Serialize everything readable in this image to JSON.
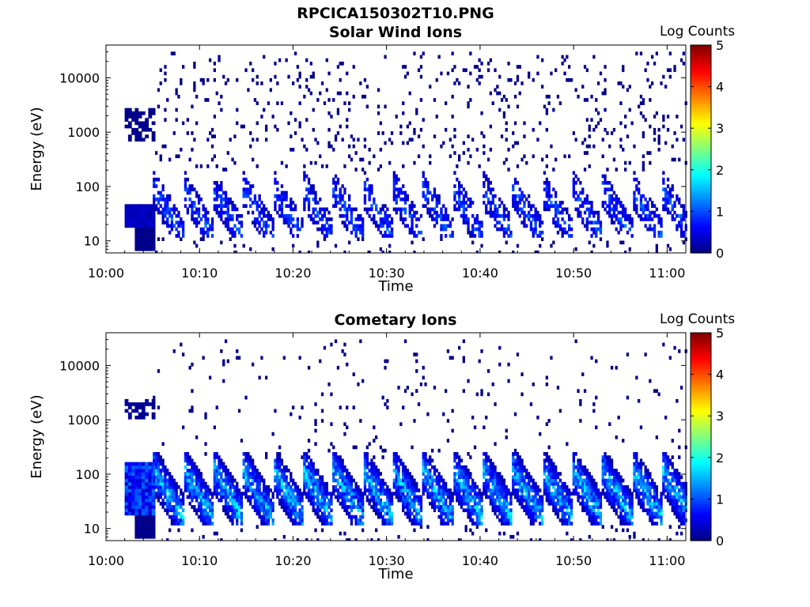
{
  "figure_title": "RPCICA150302T10.PNG",
  "panels": [
    {
      "title": "Solar Wind Ions",
      "xlabel": "Time",
      "ylabel": "Energy (eV)",
      "colorbar_label": "Log Counts"
    },
    {
      "title": "Cometary Ions",
      "xlabel": "Time",
      "ylabel": "Energy (eV)",
      "colorbar_label": "Log Counts"
    }
  ],
  "chart_data": [
    {
      "type": "heatmap",
      "title": "Solar Wind Ions",
      "xlabel": "Time",
      "ylabel": "Energy (eV)",
      "y_scale": "log",
      "ylim": [
        6,
        40000
      ],
      "xlim": [
        "10:00",
        "11:02"
      ],
      "x_ticks": [
        "10:00",
        "10:10",
        "10:20",
        "10:30",
        "10:40",
        "10:50",
        "11:00"
      ],
      "y_ticks": [
        "10",
        "100",
        "1000",
        "10000"
      ],
      "colorbar": {
        "label": "Log Counts",
        "range": [
          0,
          5
        ],
        "ticks": [
          "0",
          "1",
          "2",
          "3",
          "4",
          "5"
        ],
        "colormap": "jet"
      },
      "cycle_minutes": 3.2,
      "description_of_structure": "repeating energy sweeps every ~3.2 min; main population 20-300 eV with counts mostly 0-1 log",
      "peak_level": 1.3
    },
    {
      "type": "heatmap",
      "title": "Cometary Ions",
      "xlabel": "Time",
      "ylabel": "Energy (eV)",
      "y_scale": "log",
      "ylim": [
        6,
        40000
      ],
      "xlim": [
        "10:00",
        "11:02"
      ],
      "x_ticks": [
        "10:00",
        "10:10",
        "10:20",
        "10:30",
        "10:40",
        "10:50",
        "11:00"
      ],
      "y_ticks": [
        "10",
        "100",
        "1000",
        "10000"
      ],
      "colorbar": {
        "label": "Log Counts",
        "range": [
          0,
          5
        ],
        "ticks": [
          "0",
          "1",
          "2",
          "3",
          "4",
          "5"
        ],
        "colormap": "jet"
      },
      "cycle_minutes": 3.2,
      "description_of_structure": "repeating energy sweeps every ~3.2 min; dense population 15-200 eV with counts up to ~2 log",
      "peak_level": 2.1
    }
  ]
}
